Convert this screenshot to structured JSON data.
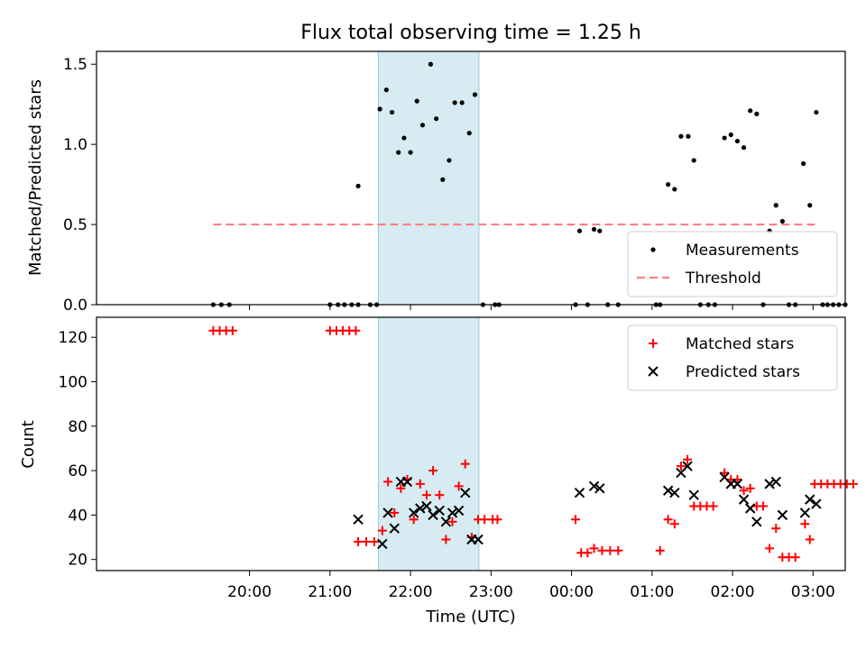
{
  "chart_data": {
    "title": "Flux total observing time = 1.25 h",
    "xlabel": "Time (UTC)",
    "x_ticks": [
      "20:00",
      "21:00",
      "22:00",
      "23:00",
      "00:00",
      "01:00",
      "02:00",
      "03:00"
    ],
    "x_axis_note": "hours since 19:00 UTC (00:00 = 5)",
    "xlim": [
      -0.9,
      8.4
    ],
    "highlight_span": [
      2.6,
      3.85
    ],
    "highlight_color": "#add8e6",
    "panels": [
      {
        "type": "scatter",
        "ylabel": "Matched/Predicted stars",
        "ylim": [
          0,
          1.58
        ],
        "yticks": [
          "0.0",
          "0.5",
          "1.0",
          "1.5"
        ],
        "legend_position": "lower-right",
        "threshold": {
          "name": "Threshold",
          "value": 0.5,
          "x_range": [
            0.55,
            8.05
          ],
          "color": "#ff7f7f"
        },
        "series": [
          {
            "name": "Measurements",
            "marker": "dot",
            "color": "#000000",
            "points": [
              [
                0.55,
                0
              ],
              [
                0.65,
                0
              ],
              [
                0.75,
                0
              ],
              [
                2.0,
                0
              ],
              [
                2.1,
                0
              ],
              [
                2.18,
                0
              ],
              [
                2.27,
                0
              ],
              [
                2.35,
                0
              ],
              [
                2.5,
                0
              ],
              [
                2.58,
                0
              ],
              [
                2.62,
                1.22
              ],
              [
                2.7,
                1.34
              ],
              [
                2.77,
                1.2
              ],
              [
                2.85,
                0.95
              ],
              [
                2.92,
                1.04
              ],
              [
                3.0,
                0.95
              ],
              [
                3.08,
                1.27
              ],
              [
                3.15,
                1.12
              ],
              [
                3.25,
                1.5
              ],
              [
                3.32,
                1.16
              ],
              [
                3.4,
                0.78
              ],
              [
                3.48,
                0.9
              ],
              [
                3.55,
                1.26
              ],
              [
                3.64,
                1.26
              ],
              [
                3.73,
                1.07
              ],
              [
                3.8,
                1.31
              ],
              [
                2.35,
                0.74
              ],
              [
                3.9,
                0
              ],
              [
                4.05,
                0
              ],
              [
                4.1,
                0
              ],
              [
                5.05,
                0
              ],
              [
                5.1,
                0.46
              ],
              [
                5.2,
                0
              ],
              [
                5.28,
                0.47
              ],
              [
                5.35,
                0.46
              ],
              [
                5.45,
                0
              ],
              [
                5.58,
                0
              ],
              [
                6.05,
                0
              ],
              [
                6.1,
                0
              ],
              [
                6.2,
                0.75
              ],
              [
                6.28,
                0.72
              ],
              [
                6.36,
                1.05
              ],
              [
                6.45,
                1.05
              ],
              [
                6.52,
                0.9
              ],
              [
                6.6,
                0
              ],
              [
                6.7,
                0
              ],
              [
                6.78,
                0
              ],
              [
                6.9,
                1.04
              ],
              [
                6.98,
                1.06
              ],
              [
                7.06,
                1.02
              ],
              [
                7.14,
                0.98
              ],
              [
                7.22,
                1.21
              ],
              [
                7.3,
                1.19
              ],
              [
                7.38,
                0
              ],
              [
                7.46,
                0.46
              ],
              [
                7.54,
                0.62
              ],
              [
                7.62,
                0.52
              ],
              [
                7.7,
                0
              ],
              [
                7.78,
                0
              ],
              [
                7.88,
                0.88
              ],
              [
                7.96,
                0.62
              ],
              [
                8.04,
                1.2
              ],
              [
                8.12,
                0
              ],
              [
                8.18,
                0
              ],
              [
                8.25,
                0
              ],
              [
                8.32,
                0
              ],
              [
                8.4,
                0
              ]
            ]
          }
        ]
      },
      {
        "type": "scatter",
        "ylabel": "Count",
        "ylim": [
          15,
          129
        ],
        "yticks": [
          "20",
          "40",
          "60",
          "80",
          "100",
          "120"
        ],
        "legend_position": "upper-right",
        "series": [
          {
            "name": "Matched stars",
            "marker": "plus",
            "color": "#ff0000",
            "points": [
              [
                0.55,
                123
              ],
              [
                0.63,
                123
              ],
              [
                0.71,
                123
              ],
              [
                0.79,
                123
              ],
              [
                2.0,
                123
              ],
              [
                2.08,
                123
              ],
              [
                2.16,
                123
              ],
              [
                2.24,
                123
              ],
              [
                2.32,
                123
              ],
              [
                2.35,
                28
              ],
              [
                2.45,
                28
              ],
              [
                2.55,
                28
              ],
              [
                2.65,
                33
              ],
              [
                2.72,
                55
              ],
              [
                2.8,
                41
              ],
              [
                2.88,
                52
              ],
              [
                2.96,
                56
              ],
              [
                3.04,
                38
              ],
              [
                3.12,
                54
              ],
              [
                3.2,
                49
              ],
              [
                3.28,
                60
              ],
              [
                3.36,
                49
              ],
              [
                3.44,
                29
              ],
              [
                3.52,
                37
              ],
              [
                3.6,
                53
              ],
              [
                3.68,
                63
              ],
              [
                3.76,
                30
              ],
              [
                3.84,
                38
              ],
              [
                3.92,
                38
              ],
              [
                4.02,
                38
              ],
              [
                4.08,
                38
              ],
              [
                5.05,
                38
              ],
              [
                5.12,
                23
              ],
              [
                5.2,
                23
              ],
              [
                5.28,
                25
              ],
              [
                5.38,
                24
              ],
              [
                5.48,
                24
              ],
              [
                5.58,
                24
              ],
              [
                6.1,
                24
              ],
              [
                6.2,
                38
              ],
              [
                6.28,
                36
              ],
              [
                6.36,
                62
              ],
              [
                6.44,
                65
              ],
              [
                6.52,
                44
              ],
              [
                6.6,
                44
              ],
              [
                6.68,
                44
              ],
              [
                6.76,
                44
              ],
              [
                6.9,
                59
              ],
              [
                6.98,
                56
              ],
              [
                7.06,
                56
              ],
              [
                7.14,
                51
              ],
              [
                7.22,
                52
              ],
              [
                7.3,
                44
              ],
              [
                7.38,
                44
              ],
              [
                7.46,
                25
              ],
              [
                7.54,
                34
              ],
              [
                7.62,
                21
              ],
              [
                7.7,
                21
              ],
              [
                7.78,
                21
              ],
              [
                7.9,
                36
              ],
              [
                7.96,
                29
              ],
              [
                8.02,
                54
              ],
              [
                8.1,
                54
              ],
              [
                8.18,
                54
              ],
              [
                8.26,
                54
              ],
              [
                8.34,
                54
              ],
              [
                8.42,
                54
              ],
              [
                8.5,
                54
              ]
            ]
          },
          {
            "name": "Predicted stars",
            "marker": "x",
            "color": "#000000",
            "points": [
              [
                2.35,
                38
              ],
              [
                2.65,
                27
              ],
              [
                2.72,
                41
              ],
              [
                2.8,
                34
              ],
              [
                2.88,
                55
              ],
              [
                2.96,
                55
              ],
              [
                3.04,
                41
              ],
              [
                3.12,
                43
              ],
              [
                3.2,
                44
              ],
              [
                3.28,
                40
              ],
              [
                3.36,
                42
              ],
              [
                3.44,
                37
              ],
              [
                3.52,
                41
              ],
              [
                3.6,
                42
              ],
              [
                3.68,
                50
              ],
              [
                3.76,
                29
              ],
              [
                3.84,
                29
              ],
              [
                5.1,
                50
              ],
              [
                5.28,
                53
              ],
              [
                5.35,
                52
              ],
              [
                6.2,
                51
              ],
              [
                6.28,
                50
              ],
              [
                6.36,
                59
              ],
              [
                6.44,
                62
              ],
              [
                6.52,
                49
              ],
              [
                6.9,
                57
              ],
              [
                6.98,
                54
              ],
              [
                7.06,
                54
              ],
              [
                7.14,
                47
              ],
              [
                7.22,
                43
              ],
              [
                7.3,
                37
              ],
              [
                7.46,
                54
              ],
              [
                7.54,
                55
              ],
              [
                7.62,
                40
              ],
              [
                7.9,
                41
              ],
              [
                7.96,
                47
              ],
              [
                8.04,
                45
              ]
            ]
          }
        ]
      }
    ]
  }
}
